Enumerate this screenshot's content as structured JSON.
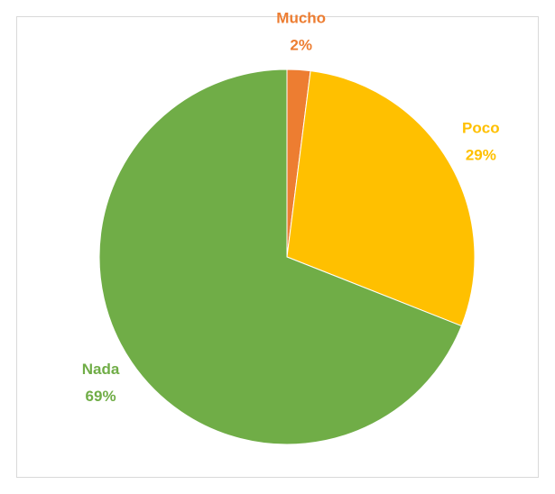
{
  "chart_data": {
    "type": "pie",
    "categories": [
      "Mucho",
      "Poco",
      "Nada"
    ],
    "values": [
      2,
      29,
      69
    ],
    "value_labels": [
      "2%",
      "29%",
      "69%"
    ],
    "colors": [
      "#ED7D31",
      "#FFC000",
      "#70AD47"
    ]
  }
}
